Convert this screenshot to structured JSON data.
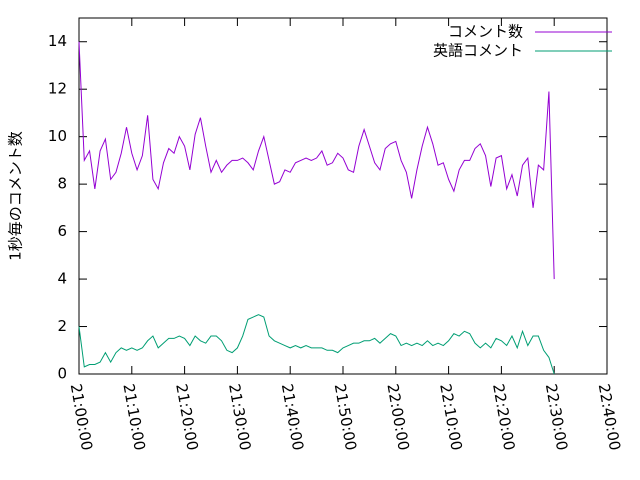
{
  "chart_data": {
    "type": "line",
    "y_label": "1秒毎のコメント数",
    "x": [
      "21:00:00",
      "21:01:00",
      "21:02:00",
      "21:03:00",
      "21:04:00",
      "21:05:00",
      "21:06:00",
      "21:07:00",
      "21:08:00",
      "21:09:00",
      "21:10:00",
      "21:11:00",
      "21:12:00",
      "21:13:00",
      "21:14:00",
      "21:15:00",
      "21:16:00",
      "21:17:00",
      "21:18:00",
      "21:19:00",
      "21:20:00",
      "21:21:00",
      "21:22:00",
      "21:23:00",
      "21:24:00",
      "21:25:00",
      "21:26:00",
      "21:27:00",
      "21:28:00",
      "21:29:00",
      "21:30:00",
      "21:31:00",
      "21:32:00",
      "21:33:00",
      "21:34:00",
      "21:35:00",
      "21:36:00",
      "21:37:00",
      "21:38:00",
      "21:39:00",
      "21:40:00",
      "21:41:00",
      "21:42:00",
      "21:43:00",
      "21:44:00",
      "21:45:00",
      "21:46:00",
      "21:47:00",
      "21:48:00",
      "21:49:00",
      "21:50:00",
      "21:51:00",
      "21:52:00",
      "21:53:00",
      "21:54:00",
      "21:55:00",
      "21:56:00",
      "21:57:00",
      "21:58:00",
      "21:59:00",
      "22:00:00",
      "22:01:00",
      "22:02:00",
      "22:03:00",
      "22:04:00",
      "22:05:00",
      "22:06:00",
      "22:07:00",
      "22:08:00",
      "22:09:00",
      "22:10:00",
      "22:11:00",
      "22:12:00",
      "22:13:00",
      "22:14:00",
      "22:15:00",
      "22:16:00",
      "22:17:00",
      "22:18:00",
      "22:19:00",
      "22:20:00",
      "22:21:00",
      "22:22:00",
      "22:23:00",
      "22:24:00",
      "22:25:00",
      "22:26:00",
      "22:27:00",
      "22:28:00",
      "22:29:00",
      "22:30:00"
    ],
    "series": [
      {
        "name": "コメント数",
        "color": "#9400d3",
        "values": [
          14.0,
          9.0,
          9.4,
          7.8,
          9.4,
          9.9,
          8.2,
          8.5,
          9.3,
          10.4,
          9.3,
          8.6,
          9.2,
          10.9,
          8.2,
          7.8,
          8.9,
          9.5,
          9.3,
          10.0,
          9.6,
          8.6,
          10.1,
          10.8,
          9.6,
          8.5,
          9.0,
          8.5,
          8.8,
          9.0,
          9.0,
          9.1,
          8.9,
          8.6,
          9.4,
          10.0,
          9.0,
          8.0,
          8.1,
          8.6,
          8.5,
          8.9,
          9.0,
          9.1,
          9.0,
          9.1,
          9.4,
          8.8,
          8.9,
          9.3,
          9.1,
          8.6,
          8.5,
          9.6,
          10.3,
          9.6,
          8.9,
          8.6,
          9.5,
          9.7,
          9.8,
          9.0,
          8.5,
          7.4,
          8.6,
          9.6,
          10.4,
          9.7,
          8.8,
          8.9,
          8.2,
          7.7,
          8.6,
          9.0,
          9.0,
          9.5,
          9.7,
          9.2,
          7.9,
          9.1,
          9.2,
          7.8,
          8.4,
          7.5,
          8.8,
          9.1,
          7.0,
          8.8,
          8.6,
          11.9,
          4.0
        ]
      },
      {
        "name": "英語コメント",
        "color": "#009e73",
        "values": [
          2.0,
          0.3,
          0.4,
          0.4,
          0.5,
          0.9,
          0.5,
          0.9,
          1.1,
          1.0,
          1.1,
          1.0,
          1.1,
          1.4,
          1.6,
          1.1,
          1.3,
          1.5,
          1.5,
          1.6,
          1.5,
          1.2,
          1.6,
          1.4,
          1.3,
          1.6,
          1.6,
          1.4,
          1.0,
          0.9,
          1.1,
          1.6,
          2.3,
          2.4,
          2.5,
          2.4,
          1.6,
          1.4,
          1.3,
          1.2,
          1.1,
          1.2,
          1.1,
          1.2,
          1.1,
          1.1,
          1.1,
          1.0,
          1.0,
          0.9,
          1.1,
          1.2,
          1.3,
          1.3,
          1.4,
          1.4,
          1.5,
          1.3,
          1.5,
          1.7,
          1.6,
          1.2,
          1.3,
          1.2,
          1.3,
          1.2,
          1.4,
          1.2,
          1.3,
          1.2,
          1.4,
          1.7,
          1.6,
          1.8,
          1.7,
          1.3,
          1.1,
          1.3,
          1.1,
          1.5,
          1.4,
          1.2,
          1.6,
          1.1,
          1.8,
          1.2,
          1.6,
          1.6,
          1.0,
          0.7,
          0.0
        ]
      }
    ],
    "xlim": [
      "21:00:00",
      "22:40:00"
    ],
    "xticks": [
      "21:00:00",
      "21:10:00",
      "21:20:00",
      "21:30:00",
      "21:40:00",
      "21:50:00",
      "22:00:00",
      "22:10:00",
      "22:20:00",
      "22:30:00",
      "22:40:00"
    ],
    "ylim": [
      0,
      15
    ],
    "yticks": [
      0,
      2,
      4,
      6,
      8,
      10,
      12,
      14
    ],
    "legend": "top-right"
  }
}
